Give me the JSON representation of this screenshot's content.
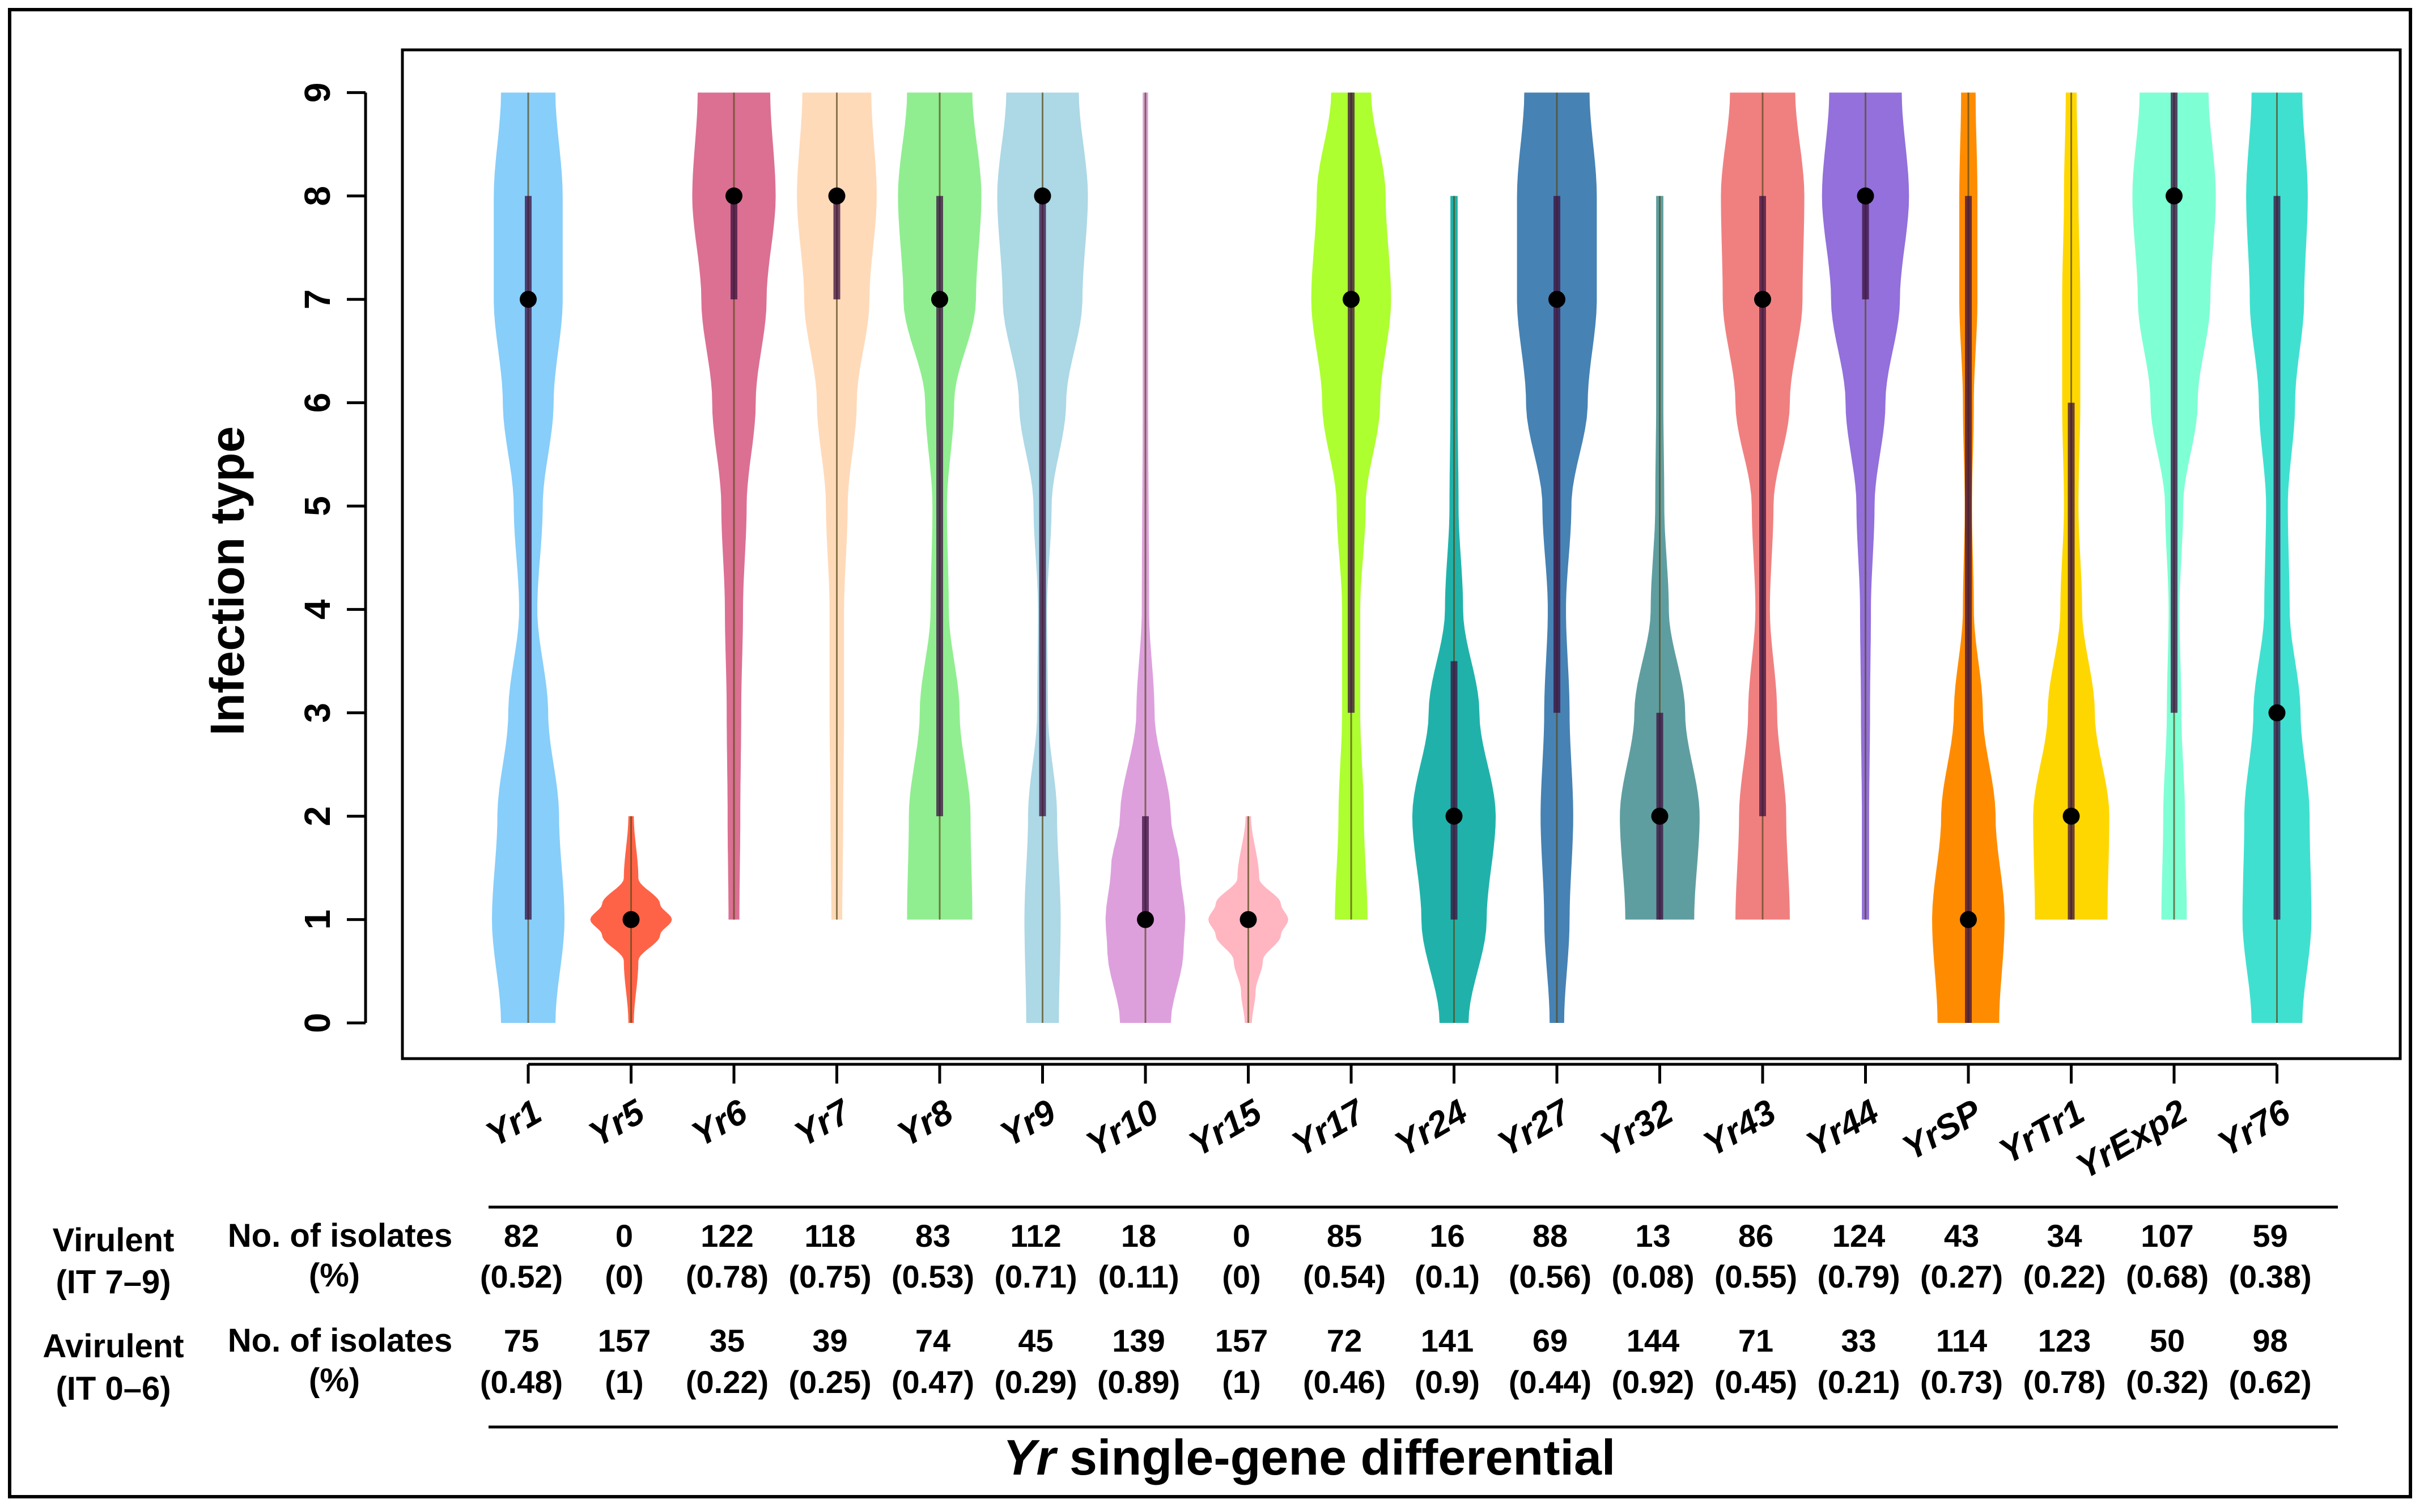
{
  "chart_data": {
    "type": "violin",
    "ylabel": "Infection type",
    "xlabel_italic": "Yr",
    "xlabel_rest": " single-gene differential",
    "ylim": [
      0,
      9
    ],
    "yticks": [
      "0",
      "1",
      "2",
      "3",
      "4",
      "5",
      "6",
      "7",
      "8",
      "9"
    ],
    "grid": false,
    "categories": [
      "Yr1",
      "Yr5",
      "Yr6",
      "Yr7",
      "Yr8",
      "Yr9",
      "Yr10",
      "Yr15",
      "Yr17",
      "Yr24",
      "Yr27",
      "Yr32",
      "Yr43",
      "Yr44",
      "YrSP",
      "YrTr1",
      "YrExp2",
      "Yr76"
    ],
    "series": [
      {
        "category": "Yr1",
        "color": "#87CEFA",
        "median": 7,
        "q1": 1,
        "q3": 8,
        "min": 0,
        "max": 9,
        "density": [
          [
            0,
            0.3
          ],
          [
            1,
            0.4
          ],
          [
            2,
            0.34
          ],
          [
            3,
            0.22
          ],
          [
            4,
            0.1
          ],
          [
            5,
            0.16
          ],
          [
            6,
            0.28
          ],
          [
            7,
            0.38
          ],
          [
            8,
            0.38
          ],
          [
            9,
            0.3
          ]
        ]
      },
      {
        "category": "Yr5",
        "color": "#FF6347",
        "median": 1,
        "q1": 1,
        "q3": 1,
        "min": 0,
        "max": 2,
        "density": [
          [
            0,
            0.03
          ],
          [
            0.6,
            0.08
          ],
          [
            0.85,
            0.32
          ],
          [
            1,
            0.45
          ],
          [
            1.15,
            0.32
          ],
          [
            1.4,
            0.08
          ],
          [
            2,
            0.03
          ]
        ]
      },
      {
        "category": "Yr6",
        "color": "#DB7093",
        "median": 8,
        "q1": 7,
        "q3": 8,
        "min": 1,
        "max": 9,
        "density": [
          [
            1,
            0.06
          ],
          [
            2,
            0.07
          ],
          [
            3,
            0.08
          ],
          [
            4,
            0.1
          ],
          [
            5,
            0.14
          ],
          [
            6,
            0.24
          ],
          [
            7,
            0.36
          ],
          [
            8,
            0.46
          ],
          [
            9,
            0.4
          ]
        ]
      },
      {
        "category": "Yr7",
        "color": "#FFDAB9",
        "median": 8,
        "q1": 7,
        "q3": 8,
        "min": 1,
        "max": 9,
        "density": [
          [
            1,
            0.06
          ],
          [
            2,
            0.07
          ],
          [
            3,
            0.08
          ],
          [
            4,
            0.08
          ],
          [
            5,
            0.12
          ],
          [
            6,
            0.22
          ],
          [
            7,
            0.36
          ],
          [
            8,
            0.44
          ],
          [
            9,
            0.38
          ]
        ]
      },
      {
        "category": "Yr8",
        "color": "#90EE90",
        "median": 7,
        "q1": 2,
        "q3": 8,
        "min": 1,
        "max": 9,
        "density": [
          [
            1,
            0.36
          ],
          [
            2,
            0.34
          ],
          [
            3,
            0.22
          ],
          [
            4,
            0.1
          ],
          [
            5,
            0.08
          ],
          [
            6,
            0.16
          ],
          [
            7,
            0.4
          ],
          [
            8,
            0.46
          ],
          [
            9,
            0.36
          ]
        ]
      },
      {
        "category": "Yr9",
        "color": "#ADD8E6",
        "median": 8,
        "q1": 2,
        "q3": 8,
        "min": 0,
        "max": 9,
        "density": [
          [
            0,
            0.18
          ],
          [
            1,
            0.2
          ],
          [
            2,
            0.16
          ],
          [
            3,
            0.06
          ],
          [
            4,
            0.05
          ],
          [
            5,
            0.1
          ],
          [
            6,
            0.26
          ],
          [
            7,
            0.44
          ],
          [
            8,
            0.5
          ],
          [
            9,
            0.4
          ]
        ]
      },
      {
        "category": "Yr10",
        "color": "#DDA0DD",
        "median": 1,
        "q1": 1,
        "q3": 2,
        "min": 0,
        "max": 9,
        "density": [
          [
            0,
            0.28
          ],
          [
            0.7,
            0.42
          ],
          [
            1,
            0.44
          ],
          [
            1.5,
            0.38
          ],
          [
            2,
            0.28
          ],
          [
            3,
            0.1
          ],
          [
            4,
            0.04
          ],
          [
            6,
            0.03
          ],
          [
            9,
            0.03
          ]
        ]
      },
      {
        "category": "Yr15",
        "color": "#FFB6C1",
        "median": 1,
        "q1": 1,
        "q3": 1,
        "min": 0,
        "max": 2,
        "density": [
          [
            0,
            0.04
          ],
          [
            0.3,
            0.08
          ],
          [
            0.6,
            0.16
          ],
          [
            0.85,
            0.36
          ],
          [
            1,
            0.44
          ],
          [
            1.15,
            0.36
          ],
          [
            1.4,
            0.12
          ],
          [
            2,
            0.03
          ]
        ]
      },
      {
        "category": "Yr17",
        "color": "#ADFF2F",
        "median": 7,
        "q1": 3,
        "q3": 9,
        "min": 1,
        "max": 9,
        "density": [
          [
            1,
            0.18
          ],
          [
            2,
            0.14
          ],
          [
            3,
            0.1
          ],
          [
            4,
            0.1
          ],
          [
            5,
            0.16
          ],
          [
            6,
            0.32
          ],
          [
            7,
            0.44
          ],
          [
            8,
            0.38
          ],
          [
            9,
            0.22
          ]
        ]
      },
      {
        "category": "Yr24",
        "color": "#20B2AA",
        "median": 2,
        "q1": 1,
        "q3": 3.5,
        "min": 0,
        "max": 8,
        "density": [
          [
            0,
            0.16
          ],
          [
            1,
            0.36
          ],
          [
            2,
            0.46
          ],
          [
            3,
            0.28
          ],
          [
            4,
            0.1
          ],
          [
            5,
            0.05
          ],
          [
            6,
            0.04
          ],
          [
            7,
            0.04
          ],
          [
            8,
            0.04
          ]
        ]
      },
      {
        "category": "Yr27",
        "color": "#4682B4",
        "median": 7,
        "q1": 3,
        "q3": 8,
        "min": 0,
        "max": 9,
        "density": [
          [
            0,
            0.08
          ],
          [
            1,
            0.14
          ],
          [
            2,
            0.18
          ],
          [
            3,
            0.14
          ],
          [
            4,
            0.1
          ],
          [
            5,
            0.16
          ],
          [
            6,
            0.34
          ],
          [
            7,
            0.44
          ],
          [
            8,
            0.44
          ],
          [
            9,
            0.36
          ]
        ]
      },
      {
        "category": "Yr32",
        "color": "#5F9EA0",
        "median": 2,
        "q1": 1,
        "q3": 3,
        "min": 1,
        "max": 8,
        "density": [
          [
            1,
            0.38
          ],
          [
            2,
            0.44
          ],
          [
            3,
            0.28
          ],
          [
            4,
            0.1
          ],
          [
            5,
            0.05
          ],
          [
            6,
            0.04
          ],
          [
            7,
            0.04
          ],
          [
            8,
            0.04
          ]
        ]
      },
      {
        "category": "Yr43",
        "color": "#F08080",
        "median": 7,
        "q1": 2,
        "q3": 8,
        "min": 1,
        "max": 9,
        "density": [
          [
            1,
            0.3
          ],
          [
            2,
            0.26
          ],
          [
            3,
            0.16
          ],
          [
            4,
            0.08
          ],
          [
            5,
            0.12
          ],
          [
            6,
            0.3
          ],
          [
            7,
            0.44
          ],
          [
            8,
            0.46
          ],
          [
            9,
            0.36
          ]
        ]
      },
      {
        "category": "Yr44",
        "color": "#9370DB",
        "median": 8,
        "q1": 7,
        "q3": 8,
        "min": 1,
        "max": 9,
        "density": [
          [
            1,
            0.04
          ],
          [
            2,
            0.04
          ],
          [
            3,
            0.05
          ],
          [
            4,
            0.06
          ],
          [
            5,
            0.1
          ],
          [
            6,
            0.22
          ],
          [
            7,
            0.38
          ],
          [
            8,
            0.48
          ],
          [
            9,
            0.4
          ]
        ]
      },
      {
        "category": "YrSP",
        "color": "#FF8C00",
        "median": 1,
        "q1": 0,
        "q3": 8,
        "min": 0,
        "max": 9,
        "density": [
          [
            0,
            0.34
          ],
          [
            1,
            0.4
          ],
          [
            2,
            0.3
          ],
          [
            3,
            0.16
          ],
          [
            4,
            0.06
          ],
          [
            5,
            0.04
          ],
          [
            6,
            0.06
          ],
          [
            7,
            0.1
          ],
          [
            8,
            0.1
          ],
          [
            9,
            0.08
          ]
        ]
      },
      {
        "category": "YrTr1",
        "color": "#FFD700",
        "median": 2,
        "q1": 1,
        "q3": 6,
        "min": 1,
        "max": 9,
        "density": [
          [
            1,
            0.4
          ],
          [
            2,
            0.42
          ],
          [
            3,
            0.26
          ],
          [
            4,
            0.12
          ],
          [
            5,
            0.08
          ],
          [
            6,
            0.1
          ],
          [
            7,
            0.1
          ],
          [
            8,
            0.08
          ],
          [
            9,
            0.06
          ]
        ]
      },
      {
        "category": "YrExp2",
        "color": "#7FFFD4",
        "median": 8,
        "q1": 3,
        "q3": 9,
        "min": 1,
        "max": 9,
        "density": [
          [
            1,
            0.14
          ],
          [
            2,
            0.12
          ],
          [
            3,
            0.08
          ],
          [
            4,
            0.06
          ],
          [
            5,
            0.1
          ],
          [
            6,
            0.26
          ],
          [
            7,
            0.4
          ],
          [
            8,
            0.46
          ],
          [
            9,
            0.38
          ]
        ]
      },
      {
        "category": "Yr76",
        "color": "#40E0D0",
        "median": 3,
        "q1": 1,
        "q3": 8,
        "min": 0,
        "max": 9,
        "density": [
          [
            0,
            0.28
          ],
          [
            1,
            0.38
          ],
          [
            2,
            0.36
          ],
          [
            3,
            0.26
          ],
          [
            4,
            0.14
          ],
          [
            5,
            0.12
          ],
          [
            6,
            0.2
          ],
          [
            7,
            0.3
          ],
          [
            8,
            0.34
          ],
          [
            9,
            0.28
          ]
        ]
      }
    ]
  },
  "table": {
    "virulent_label_line1": "Virulent",
    "virulent_label_line2": "(IT 7–9)",
    "avirulent_label_line1": "Avirulent",
    "avirulent_label_line2": "(IT 0–6)",
    "count_label_line1": "No. of isolates",
    "count_label_line2": "(%)",
    "virulent_counts": [
      "82",
      "0",
      "122",
      "118",
      "83",
      "112",
      "18",
      "0",
      "85",
      "16",
      "88",
      "13",
      "86",
      "124",
      "43",
      "34",
      "107",
      "59"
    ],
    "virulent_fractions": [
      "(0.52)",
      "(0)",
      "(0.78)",
      "(0.75)",
      "(0.53)",
      "(0.71)",
      "(0.11)",
      "(0)",
      "(0.54)",
      "(0.1)",
      "(0.56)",
      "(0.08)",
      "(0.55)",
      "(0.79)",
      "(0.27)",
      "(0.22)",
      "(0.68)",
      "(0.38)"
    ],
    "avirulent_counts": [
      "75",
      "157",
      "35",
      "39",
      "74",
      "45",
      "139",
      "157",
      "72",
      "141",
      "69",
      "144",
      "71",
      "33",
      "114",
      "123",
      "50",
      "98"
    ],
    "avirulent_fractions": [
      "(0.48)",
      "(1)",
      "(0.22)",
      "(0.25)",
      "(0.47)",
      "(0.29)",
      "(0.89)",
      "(1)",
      "(0.46)",
      "(0.9)",
      "(0.44)",
      "(0.92)",
      "(0.45)",
      "(0.21)",
      "(0.73)",
      "(0.78)",
      "(0.32)",
      "(0.62)"
    ]
  }
}
